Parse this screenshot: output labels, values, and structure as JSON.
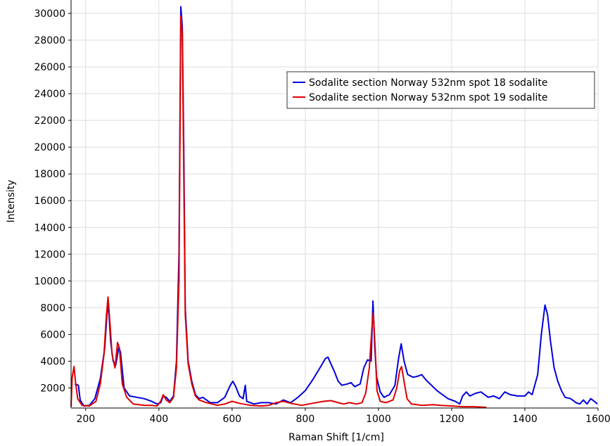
{
  "chart_data": {
    "type": "line",
    "xlabel": "Raman Shift [1/cm]",
    "ylabel": "Intensity",
    "xlim": [
      160,
      1600
    ],
    "ylim": [
      500,
      31000
    ],
    "x_ticks": [
      200,
      400,
      600,
      800,
      1000,
      1200,
      1400,
      1600
    ],
    "y_ticks": [
      2000,
      4000,
      6000,
      8000,
      10000,
      12000,
      14000,
      16000,
      18000,
      20000,
      22000,
      24000,
      26000,
      28000,
      30000
    ],
    "grid": true,
    "legend_position": "top-right",
    "series": [
      {
        "name": "Sodalite section Norway 532nm spot 18 sodalite",
        "color": "#0000dd",
        "points": [
          [
            170,
            2300
          ],
          [
            180,
            2200
          ],
          [
            185,
            1100
          ],
          [
            195,
            650
          ],
          [
            210,
            700
          ],
          [
            225,
            1200
          ],
          [
            240,
            2700
          ],
          [
            252,
            5000
          ],
          [
            258,
            7500
          ],
          [
            262,
            8200
          ],
          [
            268,
            5500
          ],
          [
            275,
            4000
          ],
          [
            282,
            3700
          ],
          [
            290,
            5000
          ],
          [
            295,
            4700
          ],
          [
            305,
            2000
          ],
          [
            320,
            1400
          ],
          [
            340,
            1300
          ],
          [
            360,
            1200
          ],
          [
            380,
            1000
          ],
          [
            395,
            800
          ],
          [
            405,
            900
          ],
          [
            412,
            1400
          ],
          [
            420,
            1300
          ],
          [
            430,
            1000
          ],
          [
            440,
            1400
          ],
          [
            448,
            4000
          ],
          [
            455,
            12000
          ],
          [
            460,
            30500
          ],
          [
            464,
            29000
          ],
          [
            468,
            20000
          ],
          [
            472,
            8000
          ],
          [
            480,
            4000
          ],
          [
            490,
            2500
          ],
          [
            500,
            1500
          ],
          [
            510,
            1200
          ],
          [
            520,
            1300
          ],
          [
            530,
            1100
          ],
          [
            540,
            900
          ],
          [
            560,
            900
          ],
          [
            580,
            1300
          ],
          [
            595,
            2200
          ],
          [
            602,
            2500
          ],
          [
            610,
            2100
          ],
          [
            620,
            1400
          ],
          [
            630,
            1200
          ],
          [
            636,
            2200
          ],
          [
            640,
            1000
          ],
          [
            660,
            800
          ],
          [
            680,
            900
          ],
          [
            700,
            900
          ],
          [
            720,
            800
          ],
          [
            740,
            1100
          ],
          [
            760,
            900
          ],
          [
            780,
            1300
          ],
          [
            800,
            1800
          ],
          [
            820,
            2600
          ],
          [
            840,
            3500
          ],
          [
            855,
            4200
          ],
          [
            862,
            4300
          ],
          [
            870,
            3800
          ],
          [
            880,
            3200
          ],
          [
            890,
            2500
          ],
          [
            900,
            2200
          ],
          [
            915,
            2300
          ],
          [
            925,
            2400
          ],
          [
            935,
            2100
          ],
          [
            950,
            2300
          ],
          [
            960,
            3500
          ],
          [
            970,
            4100
          ],
          [
            980,
            4000
          ],
          [
            985,
            8500
          ],
          [
            990,
            5000
          ],
          [
            995,
            2800
          ],
          [
            1005,
            1700
          ],
          [
            1015,
            1300
          ],
          [
            1030,
            1500
          ],
          [
            1045,
            2200
          ],
          [
            1055,
            4200
          ],
          [
            1062,
            5300
          ],
          [
            1070,
            4000
          ],
          [
            1080,
            3000
          ],
          [
            1095,
            2800
          ],
          [
            1110,
            2900
          ],
          [
            1118,
            3000
          ],
          [
            1130,
            2600
          ],
          [
            1145,
            2200
          ],
          [
            1160,
            1800
          ],
          [
            1175,
            1500
          ],
          [
            1190,
            1200
          ],
          [
            1210,
            1000
          ],
          [
            1222,
            800
          ],
          [
            1230,
            1400
          ],
          [
            1240,
            1700
          ],
          [
            1250,
            1400
          ],
          [
            1265,
            1600
          ],
          [
            1280,
            1700
          ],
          [
            1300,
            1300
          ],
          [
            1315,
            1400
          ],
          [
            1330,
            1200
          ],
          [
            1345,
            1700
          ],
          [
            1360,
            1500
          ],
          [
            1380,
            1400
          ],
          [
            1400,
            1400
          ],
          [
            1410,
            1700
          ],
          [
            1420,
            1500
          ],
          [
            1435,
            3000
          ],
          [
            1445,
            6000
          ],
          [
            1455,
            8200
          ],
          [
            1462,
            7500
          ],
          [
            1470,
            5500
          ],
          [
            1480,
            3500
          ],
          [
            1490,
            2500
          ],
          [
            1500,
            1800
          ],
          [
            1510,
            1300
          ],
          [
            1525,
            1200
          ],
          [
            1540,
            900
          ],
          [
            1550,
            800
          ],
          [
            1560,
            1100
          ],
          [
            1570,
            800
          ],
          [
            1580,
            1200
          ],
          [
            1590,
            1000
          ],
          [
            1598,
            800
          ]
        ]
      },
      {
        "name": "Sodalite section Norway 532nm spot 19 sodalite",
        "color": "#dd0000",
        "points": [
          [
            160,
            600
          ],
          [
            163,
            2800
          ],
          [
            168,
            3600
          ],
          [
            172,
            2500
          ],
          [
            178,
            1200
          ],
          [
            190,
            700
          ],
          [
            210,
            650
          ],
          [
            228,
            1000
          ],
          [
            240,
            2300
          ],
          [
            250,
            4500
          ],
          [
            256,
            7200
          ],
          [
            261,
            8800
          ],
          [
            266,
            7000
          ],
          [
            272,
            4500
          ],
          [
            280,
            3500
          ],
          [
            287,
            5400
          ],
          [
            292,
            5000
          ],
          [
            300,
            2300
          ],
          [
            312,
            1300
          ],
          [
            330,
            800
          ],
          [
            360,
            700
          ],
          [
            380,
            700
          ],
          [
            395,
            650
          ],
          [
            405,
            1000
          ],
          [
            412,
            1500
          ],
          [
            420,
            1100
          ],
          [
            430,
            900
          ],
          [
            440,
            1300
          ],
          [
            448,
            3500
          ],
          [
            455,
            10000
          ],
          [
            460,
            29800
          ],
          [
            464,
            28500
          ],
          [
            468,
            18000
          ],
          [
            472,
            7500
          ],
          [
            480,
            3800
          ],
          [
            490,
            2300
          ],
          [
            500,
            1400
          ],
          [
            510,
            1100
          ],
          [
            530,
            900
          ],
          [
            560,
            700
          ],
          [
            580,
            800
          ],
          [
            600,
            1000
          ],
          [
            620,
            850
          ],
          [
            650,
            700
          ],
          [
            680,
            650
          ],
          [
            700,
            700
          ],
          [
            720,
            900
          ],
          [
            740,
            1000
          ],
          [
            760,
            850
          ],
          [
            790,
            700
          ],
          [
            820,
            850
          ],
          [
            850,
            1000
          ],
          [
            870,
            1050
          ],
          [
            890,
            900
          ],
          [
            905,
            800
          ],
          [
            920,
            900
          ],
          [
            940,
            800
          ],
          [
            955,
            900
          ],
          [
            965,
            1600
          ],
          [
            975,
            3500
          ],
          [
            982,
            6500
          ],
          [
            986,
            7600
          ],
          [
            991,
            5000
          ],
          [
            996,
            1800
          ],
          [
            1005,
            1000
          ],
          [
            1020,
            900
          ],
          [
            1040,
            1100
          ],
          [
            1050,
            2000
          ],
          [
            1058,
            3300
          ],
          [
            1063,
            3600
          ],
          [
            1070,
            2500
          ],
          [
            1078,
            1200
          ],
          [
            1090,
            800
          ],
          [
            1120,
            700
          ],
          [
            1150,
            750
          ],
          [
            1170,
            700
          ],
          [
            1200,
            650
          ],
          [
            1230,
            600
          ],
          [
            1260,
            600
          ],
          [
            1295,
            550
          ]
        ]
      }
    ]
  }
}
